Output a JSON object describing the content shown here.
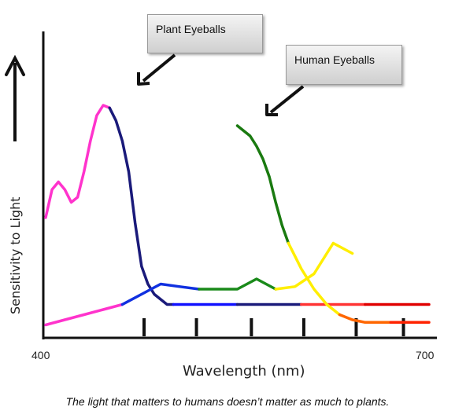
{
  "chart_data": {
    "type": "line",
    "xlabel": "Wavelength (nm)",
    "ylabel": "Sensitivity to Light",
    "xlim": [
      400,
      700
    ],
    "x_tick_labels": [
      "400",
      "700"
    ],
    "y_arrow": true,
    "grid": false,
    "annotations": [
      {
        "text": "Plant Eyeballs"
      },
      {
        "text": "Human Eyeballs"
      }
    ],
    "colors": {
      "plant": [
        "#ff33cc",
        "#1a1a7a",
        "#1010ff",
        "#1a1a7a",
        "#ff3333",
        "#e00000"
      ],
      "human": [
        "#1a7a10",
        "#ffee00",
        "#ff6600",
        "#ff2200"
      ],
      "low": [
        "#ff33cc",
        "#1030e0",
        "#1a8a1a",
        "#ffee00",
        "#ff6600"
      ]
    },
    "series": [
      {
        "key": "plant",
        "x": [
          400,
          405,
          410,
          415,
          420,
          425,
          430,
          435,
          440,
          445,
          450,
          455,
          460,
          465,
          470,
          475,
          480,
          485,
          490,
          495,
          500,
          505,
          510,
          515,
          520,
          525,
          530,
          535,
          540,
          545,
          550,
          555,
          560,
          565,
          570,
          575,
          580,
          585,
          590,
          595,
          600,
          605,
          610,
          615,
          620,
          625,
          630,
          635,
          640,
          645,
          650,
          655,
          660,
          665,
          670,
          675,
          680,
          685,
          690,
          695,
          700
        ],
        "y": [
          0.44,
          0.55,
          0.58,
          0.55,
          0.5,
          0.52,
          0.62,
          0.74,
          0.84,
          0.88,
          0.87,
          0.82,
          0.74,
          0.62,
          0.42,
          0.25,
          0.18,
          0.14,
          0.12,
          0.1,
          0.1,
          0.1,
          0.1,
          0.1,
          0.1,
          0.1,
          0.1,
          0.1,
          0.1,
          0.1,
          0.1,
          0.1,
          0.1,
          0.1,
          0.1,
          0.1,
          0.1,
          0.1,
          0.1,
          0.1,
          0.1,
          0.1,
          0.1,
          0.1,
          0.1,
          0.1,
          0.1,
          0.1,
          0.1,
          0.1,
          0.1,
          0.1,
          0.1,
          0.1,
          0.1,
          0.1,
          0.1,
          0.1,
          0.1,
          0.1,
          0.1
        ]
      },
      {
        "key": "human",
        "x": [
          550,
          555,
          560,
          565,
          570,
          575,
          580,
          585,
          590,
          595,
          600,
          605,
          610,
          615,
          620,
          625,
          630,
          635,
          640,
          645,
          650,
          655,
          660,
          665,
          670,
          675,
          680,
          685,
          690,
          695,
          700
        ],
        "y": [
          0.8,
          0.78,
          0.76,
          0.72,
          0.67,
          0.6,
          0.5,
          0.41,
          0.34,
          0.29,
          0.24,
          0.2,
          0.16,
          0.13,
          0.1,
          0.08,
          0.06,
          0.05,
          0.04,
          0.035,
          0.03,
          0.03,
          0.03,
          0.03,
          0.03,
          0.03,
          0.03,
          0.03,
          0.03,
          0.03,
          0.03
        ]
      }
    ]
  },
  "callouts": {
    "plant": "Plant Eyeballs",
    "human": "Human Eyeballs"
  },
  "caption": "The light that matters to humans doesn’t matter as much to plants."
}
